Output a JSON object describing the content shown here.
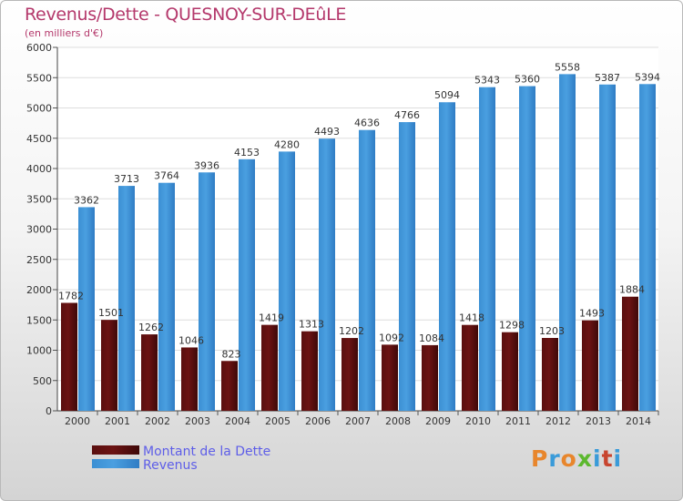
{
  "title": "Revenus/Dette - QUESNOY-SUR-DEûLE",
  "subtitle": "(en milliers d'€)",
  "logo": {
    "text": "Proxiti",
    "colors": [
      "#e8862c",
      "#3a9bd9",
      "#e8862c",
      "#5cb82e",
      "#3a9bd9",
      "#c8452f",
      "#3a9bd9"
    ]
  },
  "colors": {
    "dette": "#6b1313",
    "revenus": "#4a9fe0"
  },
  "chart_data": {
    "type": "bar",
    "categories": [
      "2000",
      "2001",
      "2002",
      "2003",
      "2004",
      "2005",
      "2006",
      "2007",
      "2008",
      "2009",
      "2010",
      "2011",
      "2012",
      "2013",
      "2014"
    ],
    "series": [
      {
        "name": "Montant de la Dette",
        "values": [
          1782,
          1501,
          1262,
          1046,
          823,
          1419,
          1313,
          1202,
          1092,
          1084,
          1418,
          1298,
          1203,
          1493,
          1884
        ],
        "labels": [
          "1782",
          "1501",
          "1262",
          "1046",
          "823",
          "1419",
          "1313",
          "1202",
          "1092",
          "1084",
          "1418",
          "1298",
          "1203",
          "1493",
          "1884"
        ]
      },
      {
        "name": "Revenus",
        "values": [
          3362,
          3713,
          3764,
          3936,
          4153,
          4280,
          4493,
          4636,
          4766,
          5094,
          5343,
          5360,
          5558,
          5387,
          5394
        ],
        "labels": [
          "3362",
          "3713",
          "3764",
          "3936",
          "4153",
          "4280",
          "4493",
          "4636",
          "4766",
          "5094",
          "5343",
          "5360",
          "5558",
          "5387",
          "5394"
        ]
      }
    ],
    "yticks": [
      0,
      500,
      1000,
      1500,
      2000,
      2500,
      3000,
      3500,
      4000,
      4500,
      5000,
      5500,
      6000
    ],
    "ylim": [
      0,
      6000
    ],
    "grid": true,
    "legend": "bottom-left"
  }
}
